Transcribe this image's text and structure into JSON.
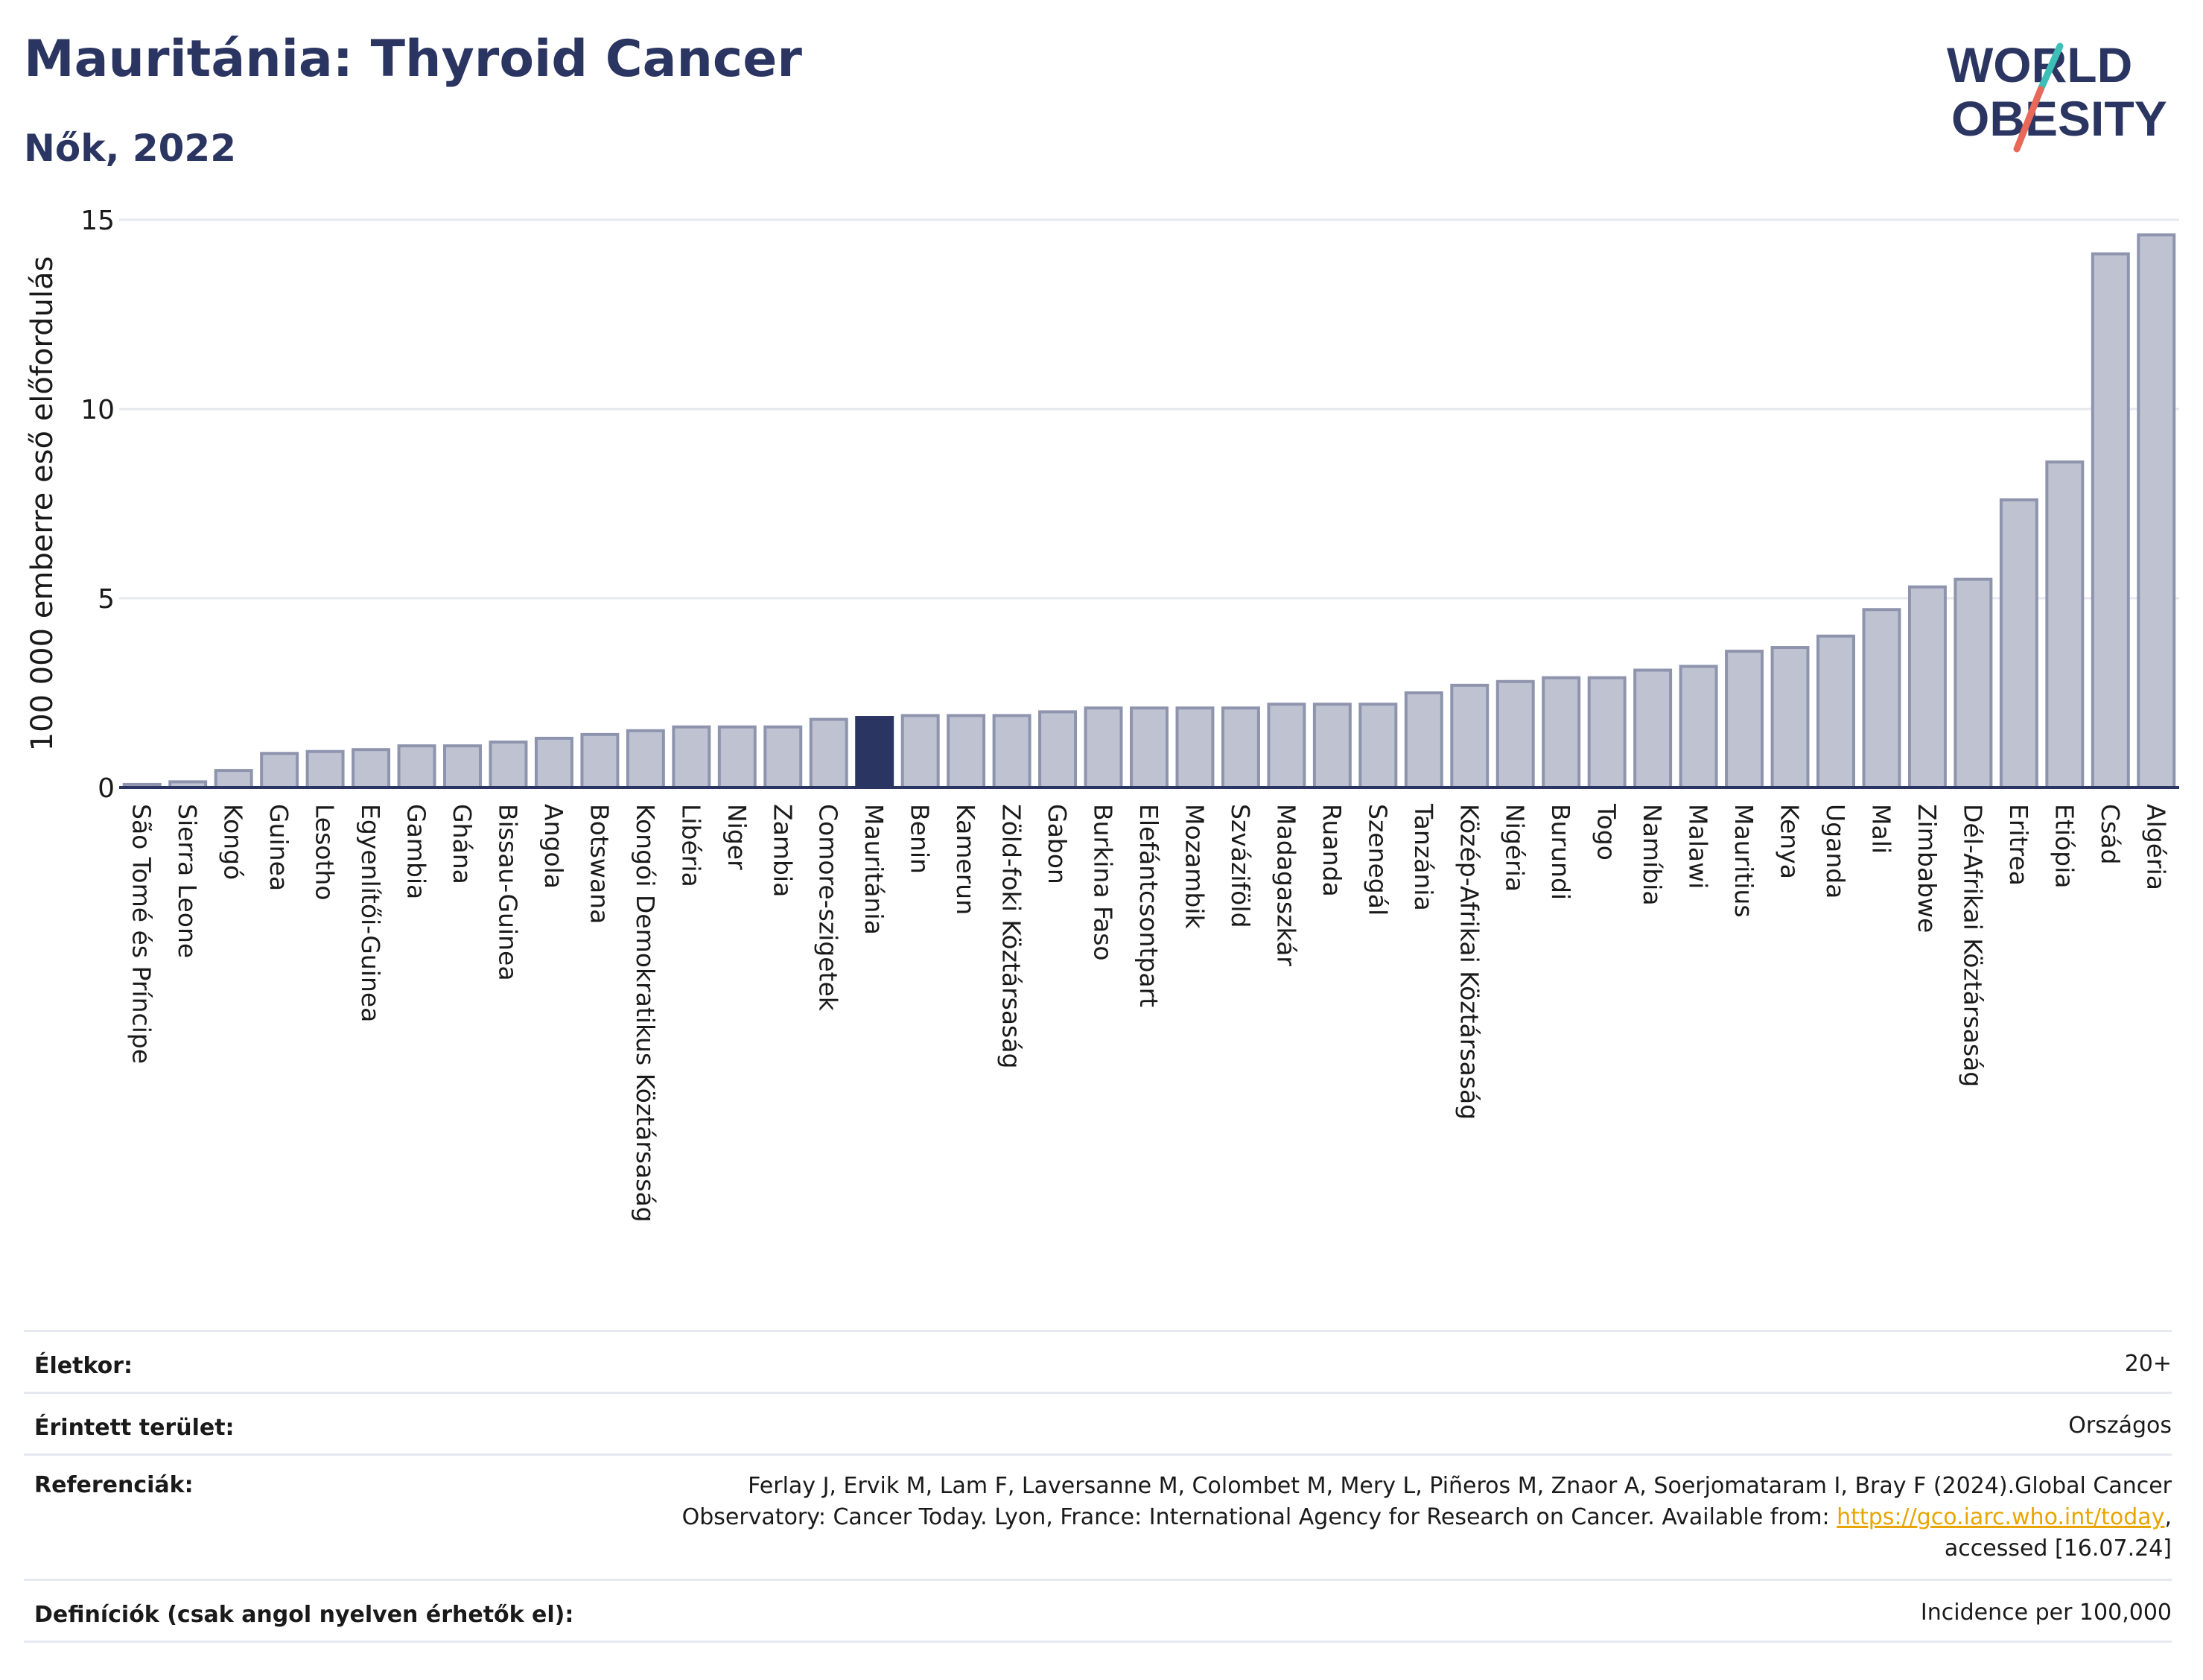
{
  "header": {
    "title": "Mauritánia: Thyroid Cancer",
    "subtitle": "Nők, 2022"
  },
  "logo": {
    "line1": "WORLD",
    "line2": "OBESITY",
    "accent_teal": "#3dbfb8",
    "accent_red": "#e8685a"
  },
  "colors": {
    "bar": "#bfc3d1",
    "bar_stroke": "#8e94ad",
    "highlight": "#2b3561",
    "text": "#1a1a1a"
  },
  "chart_data": {
    "type": "bar",
    "ylabel": "100 000 emberre eső előfordulás",
    "ylim": [
      0,
      15
    ],
    "yticks": [
      0,
      5,
      10,
      15
    ],
    "grid": true,
    "highlight": "Mauritánia",
    "categories": [
      "São Tomé és Príncipe",
      "Sierra Leone",
      "Kongó",
      "Guinea",
      "Lesotho",
      "Egyenlítői-Guinea",
      "Gambia",
      "Ghána",
      "Bissau-Guinea",
      "Angola",
      "Botswana",
      "Kongói Demokratikus Köztársaság",
      "Libéria",
      "Niger",
      "Zambia",
      "Comore-szigetek",
      "Mauritánia",
      "Benin",
      "Kamerun",
      "Zöld-foki Köztársaság",
      "Gabon",
      "Burkina Faso",
      "Elefántcsontpart",
      "Mozambik",
      "Szváziföld",
      "Madagaszkár",
      "Ruanda",
      "Szenegál",
      "Tanzánia",
      "Közép-Afrikai Köztársaság",
      "Nigéria",
      "Burundi",
      "Togo",
      "Namíbia",
      "Malawi",
      "Mauritius",
      "Kenya",
      "Uganda",
      "Mali",
      "Zimbabwe",
      "Dél-Afrikai Köztársaság",
      "Eritrea",
      "Etiópia",
      "Csád",
      "Algéria"
    ],
    "values": [
      0.08,
      0.15,
      0.45,
      0.9,
      0.95,
      1.0,
      1.1,
      1.1,
      1.2,
      1.3,
      1.4,
      1.5,
      1.6,
      1.6,
      1.6,
      1.8,
      1.85,
      1.9,
      1.9,
      1.9,
      2.0,
      2.1,
      2.1,
      2.1,
      2.1,
      2.2,
      2.2,
      2.2,
      2.5,
      2.7,
      2.8,
      2.9,
      2.9,
      3.1,
      3.2,
      3.6,
      3.7,
      4.0,
      4.7,
      5.3,
      5.5,
      7.6,
      8.6,
      14.1,
      14.6
    ]
  },
  "meta": {
    "age_label": "Életkor:",
    "age_value": "20+",
    "area_label": "Érintett terület:",
    "area_value": "Országos",
    "ref_label": "Referenciák:",
    "ref_line1": "Ferlay J, Ervik M, Lam F, Laversanne M, Colombet M, Mery L, Piñeros M, Znaor A, Soerjomataram I, Bray F (2024).Global Cancer",
    "ref_line2": "Observatory: Cancer Today. Lyon, France: International Agency for Research on Cancer. Available from: ",
    "ref_link": "https://gco.iarc.who.int/today",
    "ref_line2_end": ",",
    "ref_line3": "accessed [16.07.24]",
    "def_label": "Definíciók (csak angol nyelven érhetők el):",
    "def_value": "Incidence per 100,000"
  }
}
